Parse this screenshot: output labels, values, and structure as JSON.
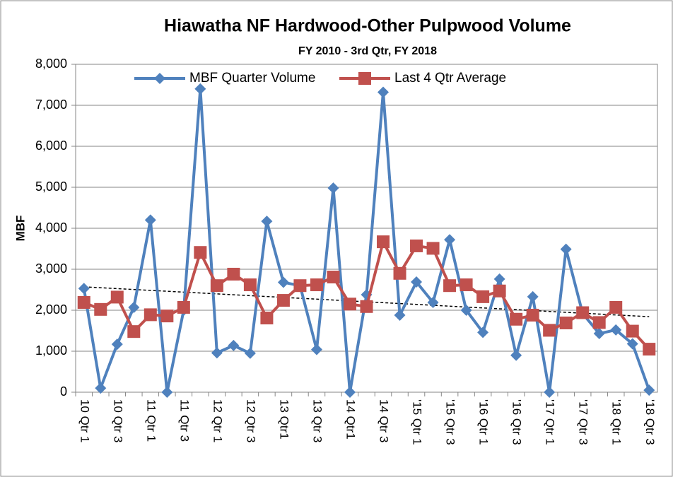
{
  "chart_data": {
    "type": "line",
    "title": "Hiawatha NF Hardwood-Other Pulpwood Volume",
    "subtitle": "FY 2010 - 3rd Qtr,  FY 2018",
    "y_label": "MBF",
    "categories": [
      "10 Qtr 1",
      null,
      "10 Qtr 3",
      null,
      "11 Qtr 1",
      null,
      "11 Qtr 3",
      null,
      "12 Qtr 1",
      null,
      "12 Qtr 3",
      null,
      "13 Qtr1",
      null,
      "13 Qtr 3",
      null,
      "14 Qtr1",
      null,
      "14 Qtr 3",
      null,
      "'15 Qtr 1",
      null,
      "'15 Qtr 3",
      null,
      "'16 Qtr 1",
      null,
      "'16 Qtr 3",
      null,
      "'17 Qtr 1",
      null,
      "'17 Qtr 3",
      null,
      "'18 Qtr 1",
      null,
      "'18 Qtr 3"
    ],
    "series": [
      {
        "name": "MBF Quarter Volume",
        "color": "#4f81bd",
        "marker": "diamond",
        "values": [
          2530,
          100,
          1170,
          2070,
          4200,
          0,
          2000,
          7400,
          960,
          1140,
          950,
          4170,
          2680,
          2600,
          1040,
          4980,
          0,
          2380,
          7320,
          1880,
          2690,
          2190,
          3720,
          2000,
          1460,
          2760,
          900,
          2330,
          0,
          3490,
          1920,
          1430,
          1520,
          1180,
          50
        ]
      },
      {
        "name": "Last 4 Qtr Average",
        "color": "#c0504d",
        "marker": "square",
        "values": [
          2190,
          2020,
          2320,
          1480,
          1890,
          1860,
          2070,
          3410,
          2600,
          2880,
          2620,
          1810,
          2240,
          2600,
          2620,
          2810,
          2150,
          2090,
          3670,
          2900,
          3570,
          3510,
          2600,
          2620,
          2330,
          2470,
          1780,
          1880,
          1510,
          1690,
          1940,
          1700,
          2070,
          1490,
          1050
        ]
      }
    ],
    "trendline": true,
    "ylim": [
      0,
      8000
    ],
    "yticks": [
      0,
      {
        "value": 1000,
        "label": "1,000"
      },
      {
        "value": 2000,
        "label": "2,000"
      },
      {
        "value": 3000,
        "label": "3,000"
      },
      {
        "value": 4000,
        "label": "4,000"
      },
      {
        "value": 5000,
        "label": "5,000"
      },
      {
        "value": 6000,
        "label": "6,000"
      },
      {
        "value": 7000,
        "label": "7,000"
      },
      {
        "value": 8000,
        "label": "8,000"
      }
    ],
    "grid": true,
    "legend": "top"
  }
}
